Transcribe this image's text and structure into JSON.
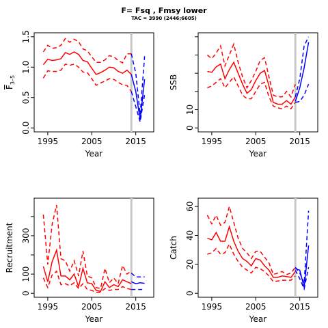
{
  "header": {
    "title": "F= Fsq , Fmsy lower",
    "subtitle": "TAC = 3990 (2446;6605)"
  },
  "colors": {
    "history": "#ff0000",
    "projection": "#0000ff",
    "marker": "#c8c8c8"
  },
  "chart_data": [
    {
      "type": "line",
      "ylabel": "F3-5",
      "ylabel_main": "F",
      "ylabel_sub": "3–5",
      "xlabel": "Year",
      "xlim": [
        1993,
        2018
      ],
      "ylim": [
        0,
        1.5
      ],
      "xticks": [
        1995,
        2005,
        2015
      ],
      "yticks": [
        0,
        0.5,
        1.0,
        1.5
      ],
      "ytick_labels": [
        "0.0",
        "0.5",
        "1.0",
        "1.5"
      ],
      "marker_year": 2014,
      "history": {
        "x": [
          1994,
          1995,
          1996,
          1997,
          1998,
          1999,
          2000,
          2001,
          2002,
          2003,
          2004,
          2005,
          2006,
          2007,
          2008,
          2009,
          2010,
          2011,
          2012,
          2013,
          2014
        ],
        "mid": [
          1.04,
          1.13,
          1.11,
          1.12,
          1.14,
          1.24,
          1.21,
          1.25,
          1.21,
          1.11,
          1.09,
          0.98,
          0.88,
          0.91,
          0.95,
          1.0,
          0.99,
          0.93,
          0.9,
          0.95,
          0.88
        ],
        "upper": [
          1.25,
          1.36,
          1.31,
          1.32,
          1.36,
          1.47,
          1.41,
          1.46,
          1.42,
          1.3,
          1.27,
          1.17,
          1.08,
          1.08,
          1.12,
          1.19,
          1.17,
          1.11,
          1.07,
          1.22,
          1.22
        ],
        "lower": [
          0.82,
          0.94,
          0.93,
          0.93,
          0.95,
          1.05,
          1.03,
          1.05,
          1.0,
          0.92,
          0.91,
          0.81,
          0.7,
          0.74,
          0.77,
          0.81,
          0.8,
          0.75,
          0.71,
          0.7,
          0.6
        ]
      },
      "projection": {
        "x": [
          2014,
          2015,
          2016,
          2017
        ],
        "mid": [
          0.88,
          0.6,
          0.13,
          0.8
        ],
        "upper": [
          1.22,
          0.9,
          0.22,
          1.18
        ],
        "lower": [
          0.6,
          0.35,
          0.1,
          0.55
        ]
      }
    },
    {
      "type": "line",
      "ylabel": "SSB",
      "xlabel": "Year",
      "xlim": [
        1993,
        2018
      ],
      "ylim": [
        0,
        50
      ],
      "xticks": [
        1995,
        2005,
        2015
      ],
      "yticks": [
        0,
        10,
        20,
        30,
        40,
        50
      ],
      "ytick_labels": [
        "0",
        "10",
        "",
        "",
        "",
        ""
      ],
      "marker_year": 2014,
      "history": {
        "x": [
          1994,
          1995,
          1996,
          1997,
          1998,
          1999,
          2000,
          2001,
          2002,
          2003,
          2004,
          2005,
          2006,
          2007,
          2008,
          2009,
          2010,
          2011,
          2012,
          2013,
          2014
        ],
        "mid": [
          31,
          30.5,
          33.5,
          35,
          27,
          32,
          36,
          30,
          24,
          19,
          21,
          26,
          30,
          31.5,
          23,
          14,
          13,
          13,
          15,
          13,
          17
        ],
        "upper": [
          40,
          38,
          41,
          45,
          34,
          40,
          46,
          36,
          28,
          22,
          26,
          31,
          37,
          38.5,
          28,
          18,
          17,
          17,
          20,
          17,
          24
        ],
        "lower": [
          22,
          23,
          25,
          27,
          22,
          25,
          28,
          23,
          18,
          16,
          16,
          20,
          24,
          25,
          17,
          12,
          11,
          10.5,
          12,
          10.5,
          14
        ]
      },
      "projection": {
        "x": [
          2014,
          2015,
          2016,
          2017
        ],
        "mid": [
          14.5,
          22,
          33,
          47
        ],
        "upper": [
          17,
          27,
          45,
          50
        ],
        "lower": [
          14,
          14.5,
          18,
          24
        ]
      }
    },
    {
      "type": "line",
      "ylabel": "Recruitment",
      "xlabel": "Year",
      "xlim": [
        1993,
        2018
      ],
      "ylim": [
        0,
        475
      ],
      "xticks": [
        1995,
        2005,
        2015
      ],
      "yticks": [
        0,
        100,
        200,
        300,
        400
      ],
      "ytick_labels": [
        "0",
        "100",
        "",
        "300",
        ""
      ],
      "marker_year": 2014,
      "history": {
        "x": [
          1994,
          1995,
          1996,
          1997,
          1998,
          1999,
          2000,
          2001,
          2002,
          2003,
          2004,
          2005,
          2006,
          2007,
          2008,
          2009,
          2010,
          2011,
          2012,
          2013,
          2014
        ],
        "mid": [
          140,
          60,
          165,
          225,
          90,
          90,
          70,
          100,
          35,
          130,
          55,
          50,
          15,
          10,
          60,
          30,
          45,
          35,
          70,
          60,
          50
        ],
        "upper": [
          410,
          150,
          360,
          460,
          180,
          170,
          115,
          170,
          90,
          220,
          90,
          80,
          30,
          25,
          130,
          55,
          80,
          50,
          145,
          100,
          115
        ],
        "lower": [
          80,
          30,
          95,
          115,
          45,
          50,
          40,
          55,
          25,
          50,
          20,
          15,
          5,
          5,
          25,
          15,
          20,
          20,
          35,
          25,
          20
        ]
      },
      "projection": {
        "x": [
          2014,
          2015,
          2016,
          2017
        ],
        "mid": [
          60,
          50,
          55,
          52
        ],
        "upper": [
          105,
          85,
          85,
          85
        ],
        "lower": [
          20,
          20,
          20,
          20
        ]
      }
    },
    {
      "type": "line",
      "ylabel": "Catch",
      "xlabel": "Year",
      "xlim": [
        1993,
        2018
      ],
      "ylim": [
        0,
        63
      ],
      "xticks": [
        1995,
        2005,
        2015
      ],
      "yticks": [
        0,
        20,
        40,
        60
      ],
      "ytick_labels": [
        "0",
        "20",
        "40",
        "60"
      ],
      "marker_year": 2014,
      "history": {
        "x": [
          1994,
          1995,
          1996,
          1997,
          1998,
          1999,
          2000,
          2001,
          2002,
          2003,
          2004,
          2005,
          2006,
          2007,
          2008,
          2009,
          2010,
          2011,
          2012,
          2013,
          2014
        ],
        "mid": [
          38,
          37,
          42,
          36,
          36,
          46,
          36,
          29,
          24,
          22,
          19,
          24,
          23,
          19,
          16,
          11,
          11,
          12,
          11.5,
          11,
          15
        ],
        "upper": [
          54,
          48,
          54,
          47,
          49,
          60,
          49,
          38,
          31,
          28,
          24,
          29,
          29,
          25,
          21,
          13,
          14,
          15,
          13,
          14,
          18
        ],
        "lower": [
          27,
          28,
          31,
          27,
          28,
          34,
          27,
          22,
          18,
          16,
          14,
          18,
          17,
          15,
          12,
          8,
          8.5,
          9,
          9,
          9,
          12
        ]
      },
      "projection": {
        "x": [
          2014,
          2015,
          2016,
          2017
        ],
        "mid": [
          17,
          16,
          4,
          33
        ],
        "upper": [
          18,
          14,
          7,
          57
        ],
        "lower": [
          16,
          10,
          3,
          18
        ]
      }
    }
  ]
}
